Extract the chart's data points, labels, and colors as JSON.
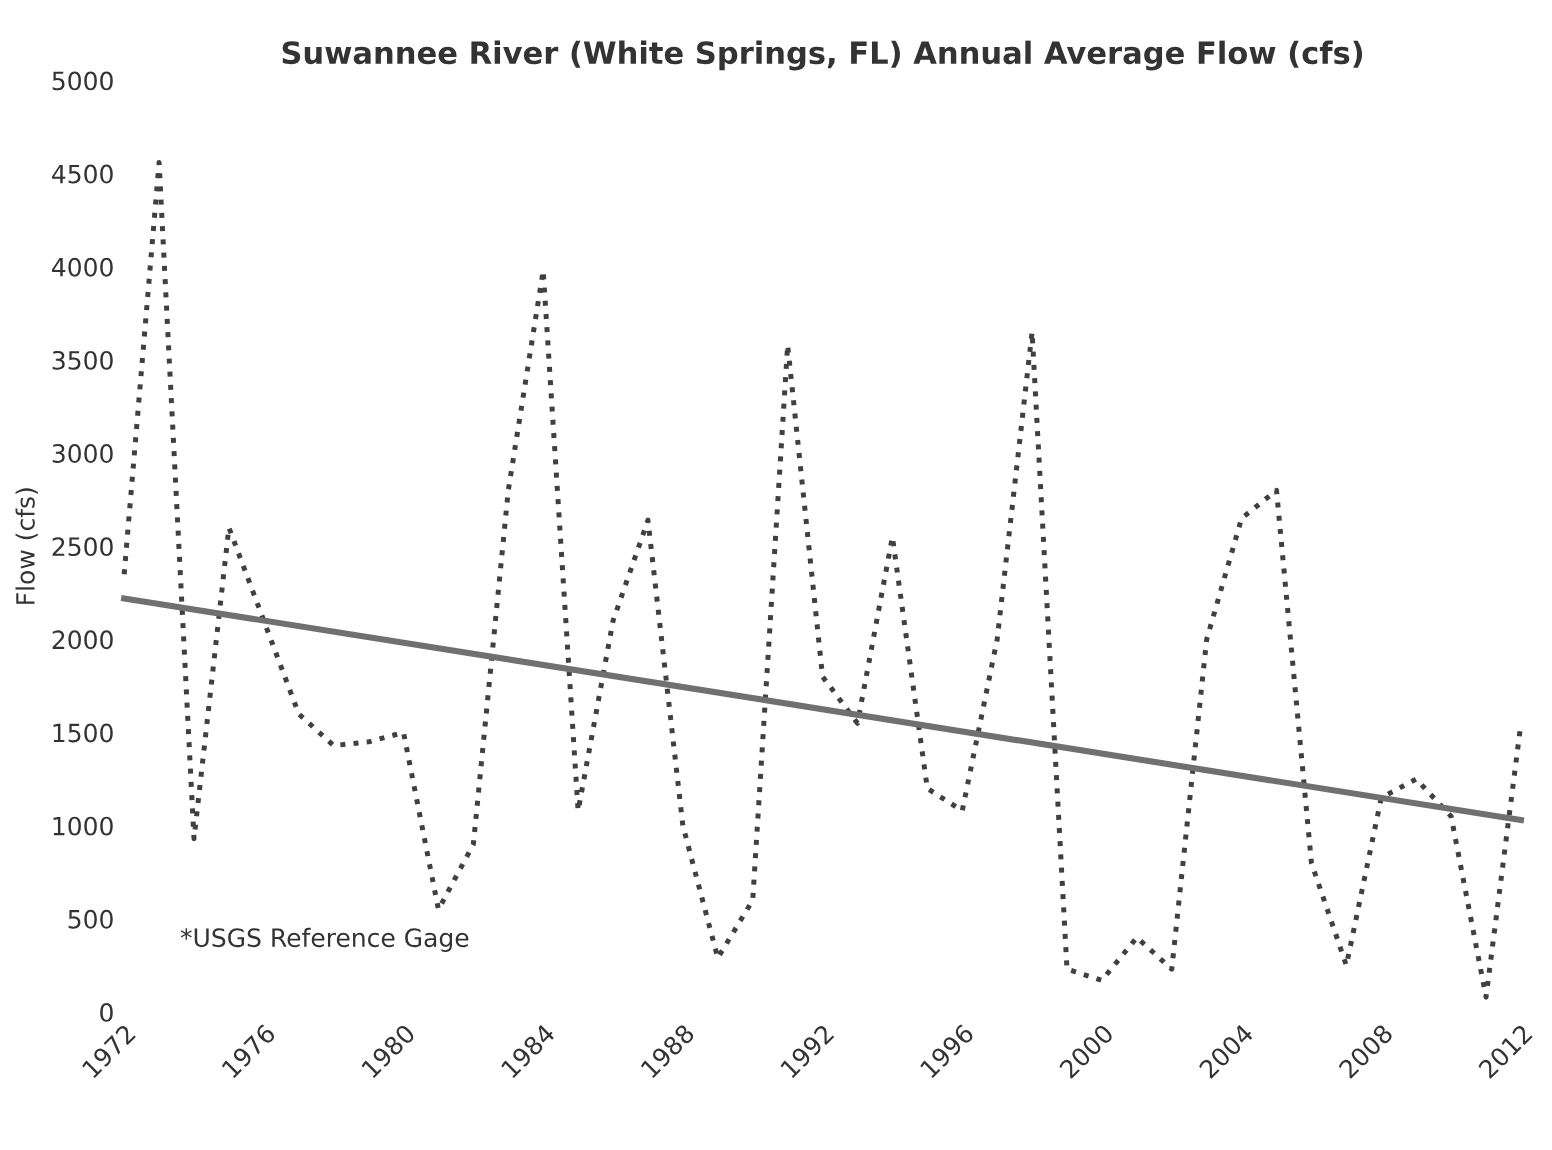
{
  "chart_data": {
    "type": "line",
    "title": "Suwannee River (White Springs, FL) Annual Average Flow (cfs)",
    "ylabel": "Flow (cfs)",
    "x": [
      1972,
      1973,
      1974,
      1975,
      1976,
      1977,
      1978,
      1979,
      1980,
      1981,
      1982,
      1983,
      1984,
      1985,
      1986,
      1987,
      1988,
      1989,
      1990,
      1991,
      1992,
      1993,
      1994,
      1995,
      1996,
      1997,
      1998,
      1999,
      2000,
      2001,
      2002,
      2003,
      2004,
      2005,
      2006,
      2007,
      2008,
      2009,
      2010,
      2011,
      2012
    ],
    "series": [
      {
        "color": "#404040",
        "line_style": "dotted",
        "values": [
          2350,
          4560,
          930,
          2600,
          2100,
          1600,
          1430,
          1450,
          1500,
          550,
          900,
          2800,
          3980,
          1080,
          2100,
          2640,
          1000,
          290,
          600,
          3580,
          1800,
          1550,
          2550,
          1200,
          1080,
          2000,
          3650,
          230,
          170,
          400,
          230,
          2000,
          2650,
          2800,
          800,
          250,
          1150,
          1250,
          1050,
          80,
          1550
        ]
      },
      {
        "type": "line",
        "color": "#707070",
        "line_style": "solid",
        "x": [
          1972,
          2012
        ],
        "values": [
          2220,
          1030
        ]
      }
    ],
    "xlim": [
      1972,
      2012
    ],
    "xticks": [
      1972,
      1976,
      1980,
      1984,
      1988,
      1992,
      1996,
      2000,
      2004,
      2008,
      2012
    ],
    "ylim": [
      0,
      5000
    ],
    "yticks": [
      0,
      500,
      1000,
      1500,
      2000,
      2500,
      3000,
      3500,
      4000,
      4500,
      5000
    ],
    "grid": false,
    "legend": false,
    "marker": "none",
    "annotations": [
      "*USGS Reference Gage"
    ]
  }
}
